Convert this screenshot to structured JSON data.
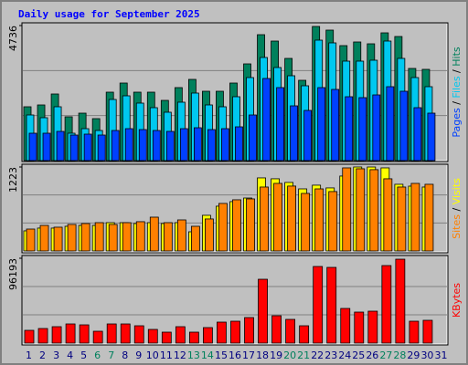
{
  "chart_data": [
    {
      "type": "bar",
      "title": "Daily usage for September 2025",
      "categories": [
        "1",
        "2",
        "3",
        "4",
        "5",
        "6",
        "7",
        "8",
        "9",
        "10",
        "11",
        "12",
        "13",
        "14",
        "15",
        "16",
        "17",
        "18",
        "19",
        "20",
        "21",
        "22",
        "23",
        "24",
        "25",
        "26",
        "27",
        "28",
        "29",
        "30",
        "31"
      ],
      "legend_separator": " / ",
      "ylim": [
        0,
        4736
      ],
      "yticks": [
        4736
      ],
      "series": [
        {
          "name": "Hits",
          "color": "#00805c",
          "values": [
            1888,
            1952,
            2336,
            1536,
            1664,
            1472,
            2400,
            2720,
            2400,
            2400,
            2112,
            2560,
            2848,
            2432,
            2432,
            2720,
            3392,
            4416,
            4192,
            3584,
            2816,
            4704,
            4576,
            4032,
            4160,
            4096,
            4480,
            4352,
            3232,
            3200,
            null
          ]
        },
        {
          "name": "Files",
          "color": "#00c8f0",
          "values": [
            1600,
            1504,
            1888,
            960,
            1120,
            1056,
            2144,
            2272,
            2016,
            1856,
            1696,
            2048,
            2368,
            1952,
            1888,
            2240,
            2912,
            3616,
            3264,
            2976,
            2624,
            4224,
            4128,
            3488,
            3488,
            3520,
            4192,
            3584,
            2912,
            2592,
            null
          ]
        },
        {
          "name": "Pages",
          "color": "#0040ff",
          "values": [
            960,
            960,
            1024,
            896,
            928,
            896,
            1056,
            1120,
            1088,
            1056,
            1024,
            1120,
            1152,
            1088,
            1120,
            1184,
            1600,
            2880,
            2560,
            1920,
            1760,
            2560,
            2496,
            2240,
            2208,
            2304,
            2592,
            2432,
            1856,
            1664,
            null
          ]
        }
      ]
    },
    {
      "type": "bar",
      "categories": [
        "1",
        "2",
        "3",
        "4",
        "5",
        "6",
        "7",
        "8",
        "9",
        "10",
        "11",
        "12",
        "13",
        "14",
        "15",
        "16",
        "17",
        "18",
        "19",
        "20",
        "21",
        "22",
        "23",
        "24",
        "25",
        "26",
        "27",
        "28",
        "29",
        "30",
        "31"
      ],
      "legend_separator": " / ",
      "ylim": [
        0,
        1223
      ],
      "yticks": [
        1223
      ],
      "series": [
        {
          "name": "Visits",
          "color": "#ffff00",
          "values": [
            293,
            333,
            333,
            359,
            372,
            372,
            412,
            412,
            399,
            412,
            399,
            412,
            279,
            519,
            652,
            718,
            771,
            1064,
            1051,
            998,
            904,
            958,
            918,
            1091,
            1223,
            1223,
            1210,
            971,
            944,
            931,
            null
          ]
        },
        {
          "name": "Sites",
          "color": "#ff8000",
          "values": [
            319,
            372,
            346,
            386,
            399,
            412,
            386,
            412,
            426,
            492,
            412,
            452,
            359,
            466,
            692,
            745,
            758,
            931,
            984,
            945,
            838,
            904,
            865,
            1210,
            1197,
            1184,
            1051,
            931,
            984,
            971,
            null
          ]
        }
      ]
    },
    {
      "type": "bar",
      "categories": [
        "1",
        "2",
        "3",
        "4",
        "5",
        "6",
        "7",
        "8",
        "9",
        "10",
        "11",
        "12",
        "13",
        "14",
        "15",
        "16",
        "17",
        "18",
        "19",
        "20",
        "21",
        "22",
        "23",
        "24",
        "25",
        "26",
        "27",
        "28",
        "29",
        "30",
        "31"
      ],
      "highlighted_categories": [
        "6",
        "7",
        "13",
        "14",
        "20",
        "21",
        "27",
        "28"
      ],
      "label_color": "#000080",
      "highlight_color": "#00805c",
      "ylim": [
        0,
        96193
      ],
      "yticks": [
        96193
      ],
      "series": [
        {
          "name": "KBytes",
          "color": "#ff0000",
          "values": [
            14476,
            16544,
            18612,
            21714,
            20680,
            13442,
            21714,
            21714,
            19646,
            15510,
            12408,
            18612,
            12408,
            17578,
            23782,
            24816,
            28952,
            72380,
            31020,
            26884,
            19646,
            86856,
            85822,
            39292,
            35156,
            36190,
            87890,
            95128,
            24816,
            25850,
            null
          ]
        }
      ]
    }
  ]
}
